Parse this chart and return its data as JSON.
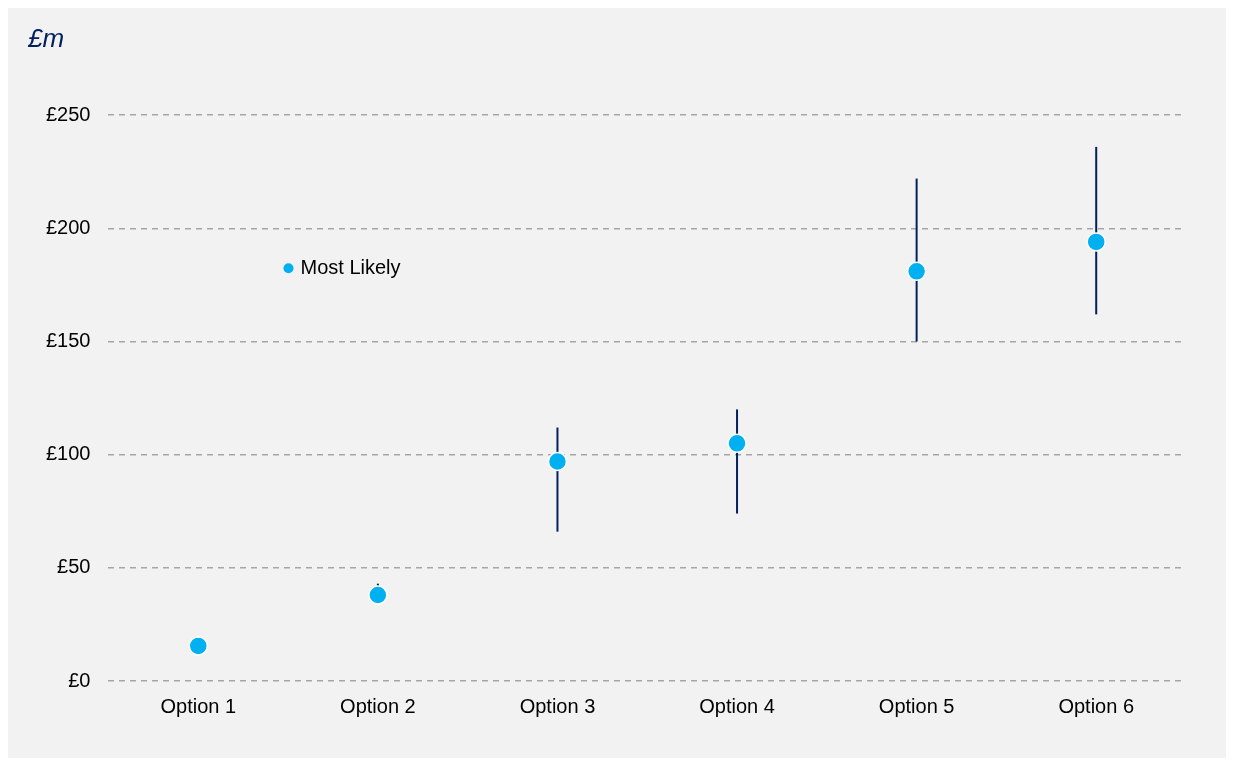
{
  "chart_data": {
    "type": "scatter",
    "ylabel": "£m",
    "categories": [
      "Option 1",
      "Option 2",
      "Option 3",
      "Option 4",
      "Option 5",
      "Option 6"
    ],
    "series": [
      {
        "name": "Most Likely",
        "color": "#00b0f0",
        "values": [
          15.5,
          38,
          97,
          105,
          181,
          194
        ],
        "errors": [
          null,
          [
            37,
            43
          ],
          [
            66,
            112
          ],
          [
            74,
            120
          ],
          [
            150,
            222
          ],
          [
            162,
            236
          ]
        ]
      }
    ],
    "ylim": [
      0,
      250
    ],
    "yticks": [
      {
        "value": 0,
        "label": "£0"
      },
      {
        "value": 50,
        "label": "£50"
      },
      {
        "value": 100,
        "label": "£100"
      },
      {
        "value": 150,
        "label": "£150"
      },
      {
        "value": 200,
        "label": "£200"
      },
      {
        "value": 250,
        "label": "£250"
      }
    ],
    "grid": "y",
    "legend": "top left",
    "marker": "circle"
  }
}
